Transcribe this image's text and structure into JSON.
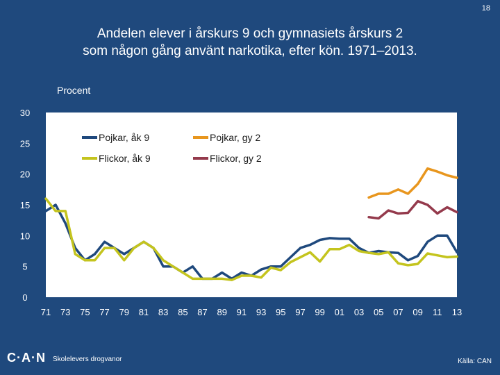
{
  "slide_number": "18",
  "unit_label": "Procent",
  "footer": {
    "logo": "C·A·N",
    "text": "Skolelevers drogvanor",
    "source": "Källa: CAN"
  },
  "chart_data": {
    "type": "line",
    "title": "Andelen elever i årskurs 9 och gymnasiets årskurs 2 som någon gång använt narkotika, efter kön. 1971–2013.",
    "title_lines": [
      "Andelen elever i årskurs 9 och gymnasiets årskurs 2",
      "som någon gång använt narkotika, efter kön. 1971–2013."
    ],
    "ylabel": "Procent",
    "ylim": [
      0,
      30
    ],
    "yticks": [
      0,
      5,
      10,
      15,
      20,
      25,
      30
    ],
    "xlim": [
      1971,
      2013
    ],
    "xtick_values": [
      1971,
      1973,
      1975,
      1977,
      1979,
      1981,
      1983,
      1985,
      1987,
      1989,
      1991,
      1993,
      1995,
      1997,
      1999,
      2001,
      2003,
      2005,
      2007,
      2009,
      2011,
      2013
    ],
    "xtick_labels": [
      "71",
      "73",
      "75",
      "77",
      "79",
      "81",
      "83",
      "85",
      "87",
      "89",
      "91",
      "93",
      "95",
      "97",
      "99",
      "01",
      "03",
      "05",
      "07",
      "09",
      "11",
      "13"
    ],
    "grid": false,
    "series": [
      {
        "name": "Pojkar, åk 9",
        "color": "#1F497D",
        "x": [
          1971,
          1972,
          1973,
          1974,
          1975,
          1976,
          1977,
          1978,
          1979,
          1980,
          1981,
          1982,
          1983,
          1984,
          1985,
          1986,
          1987,
          1988,
          1989,
          1990,
          1991,
          1992,
          1993,
          1994,
          1995,
          1996,
          1997,
          1998,
          1999,
          2000,
          2001,
          2002,
          2003,
          2004,
          2005,
          2006,
          2007,
          2008,
          2009,
          2010,
          2011,
          2012,
          2013
        ],
        "y": [
          14,
          15,
          12,
          8,
          6,
          7,
          9,
          8,
          7,
          8,
          9,
          8,
          5,
          5,
          4,
          5,
          3,
          3,
          4,
          3,
          4,
          3.5,
          4.5,
          5,
          5,
          6.5,
          8,
          8.5,
          9.3,
          9.6,
          9.5,
          9.5,
          8,
          7.2,
          7.5,
          7.3,
          7.2,
          6,
          6.7,
          9,
          10,
          10,
          7.3
        ]
      },
      {
        "name": "Flickor, åk 9",
        "color": "#C4C41E",
        "x": [
          1971,
          1972,
          1973,
          1974,
          1975,
          1976,
          1977,
          1978,
          1979,
          1980,
          1981,
          1982,
          1983,
          1984,
          1985,
          1986,
          1987,
          1988,
          1989,
          1990,
          1991,
          1992,
          1993,
          1994,
          1995,
          1996,
          1997,
          1998,
          1999,
          2000,
          2001,
          2002,
          2003,
          2004,
          2005,
          2006,
          2007,
          2008,
          2009,
          2010,
          2011,
          2012,
          2013
        ],
        "y": [
          16,
          14,
          14,
          7,
          6,
          6,
          8,
          8,
          6,
          8,
          9,
          8,
          6,
          5,
          4,
          3,
          3,
          3,
          3,
          2.8,
          3.5,
          3.5,
          3.2,
          4.8,
          4.4,
          5.7,
          6.5,
          7.3,
          5.8,
          7.8,
          7.8,
          8.5,
          7.5,
          7.2,
          7,
          7.3,
          5.5,
          5.2,
          5.4,
          7.1,
          6.8,
          6.5,
          6.6
        ]
      },
      {
        "name": "Pojkar, gy 2",
        "color": "#E8961E",
        "x": [
          2004,
          2005,
          2006,
          2007,
          2008,
          2009,
          2010,
          2011,
          2012,
          2013
        ],
        "y": [
          16.2,
          16.8,
          16.8,
          17.5,
          16.8,
          18.4,
          20.9,
          20.4,
          19.8,
          19.4
        ]
      },
      {
        "name": "Flickor, gy 2",
        "color": "#943A4C",
        "x": [
          2004,
          2005,
          2006,
          2007,
          2008,
          2009,
          2010,
          2011,
          2012,
          2013
        ],
        "y": [
          13,
          12.8,
          14.1,
          13.6,
          13.7,
          15.6,
          15,
          13.6,
          14.6,
          13.8
        ]
      }
    ],
    "legend": {
      "position": "top-center",
      "columns": 2,
      "order": [
        "Pojkar, åk 9",
        "Pojkar, gy 2",
        "Flickor, åk 9",
        "Flickor, gy 2"
      ]
    }
  }
}
